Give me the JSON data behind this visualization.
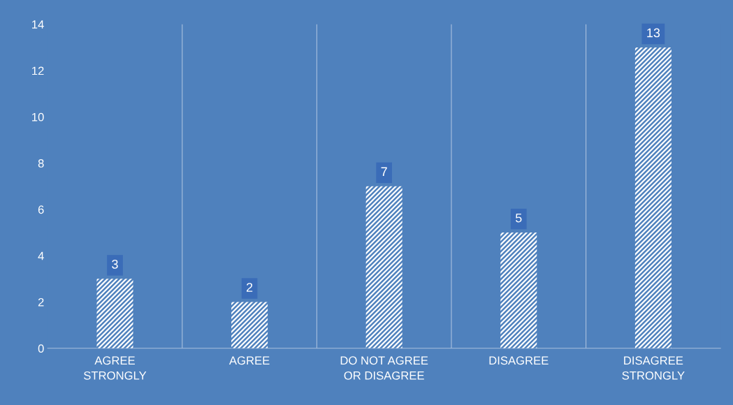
{
  "chart_data": {
    "type": "bar",
    "categories": [
      "AGREE\nSTRONGLY",
      "AGREE",
      "DO NOT AGREE\nOR DISAGREE",
      "DISAGREE",
      "DISAGREE\nSTRONGLY"
    ],
    "values": [
      3,
      2,
      7,
      5,
      13
    ],
    "color": "#ffffff",
    "ylim": [
      0,
      14
    ],
    "yticks": [
      0,
      2,
      4,
      6,
      8,
      10,
      12,
      14
    ],
    "grid": "x",
    "data_labels": true
  }
}
